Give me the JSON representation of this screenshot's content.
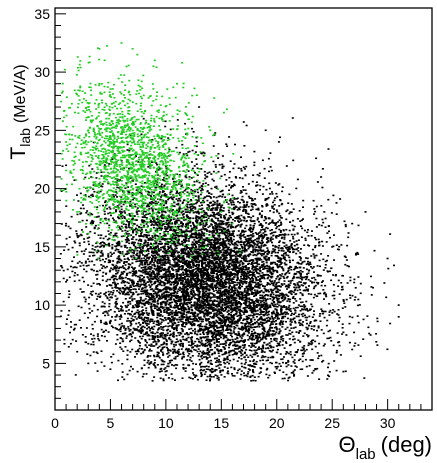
{
  "chart_data": {
    "type": "scatter",
    "xlabel": "Θ",
    "xlabel_sub": "lab",
    "xlabel_unit": "(deg)",
    "ylabel": "T",
    "ylabel_sub": "lab",
    "ylabel_unit": "(MeV/A)",
    "xlim": [
      0,
      34
    ],
    "ylim": [
      1,
      35.5
    ],
    "x_ticks": [
      0,
      5,
      10,
      15,
      20,
      25,
      30
    ],
    "y_ticks": [
      5,
      10,
      15,
      20,
      25,
      30,
      35
    ],
    "grid": false,
    "series": [
      {
        "color": "#000000",
        "count": 9000,
        "distribution": {
          "x_mean": 13.5,
          "x_sd": 5.3,
          "y_mean": 12.2,
          "y_sd": 4.2,
          "x_range": [
            0.5,
            32
          ],
          "y_range": [
            3.5,
            27
          ]
        },
        "points": [
          [
            2,
            6
          ],
          [
            3,
            5
          ],
          [
            5,
            4.5
          ],
          [
            10,
            4
          ],
          [
            14,
            4
          ],
          [
            18,
            5
          ],
          [
            27,
            6.5
          ],
          [
            31,
            9
          ],
          [
            31,
            10
          ],
          [
            30,
            14
          ],
          [
            28,
            18
          ],
          [
            24,
            21
          ],
          [
            19,
            25
          ],
          [
            13,
            27
          ],
          [
            8,
            26
          ],
          [
            5,
            24
          ],
          [
            1,
            22
          ],
          [
            1,
            17
          ],
          [
            1,
            12
          ],
          [
            22,
            10
          ],
          [
            20,
            8
          ],
          [
            15,
            12
          ],
          [
            12,
            13
          ],
          [
            25,
            15
          ],
          [
            9,
            10
          ]
        ]
      },
      {
        "color": "#22cc22",
        "count": 1900,
        "distribution": {
          "x_mean": 7.0,
          "x_sd": 3.2,
          "y_mean": 22.0,
          "y_sd": 3.4,
          "x_range": [
            0.5,
            17
          ],
          "y_range": [
            14,
            32.5
          ]
        },
        "points": [
          [
            4,
            32
          ],
          [
            6,
            32.5
          ],
          [
            7,
            32
          ],
          [
            9,
            31
          ],
          [
            4,
            29
          ],
          [
            11,
            29
          ],
          [
            14,
            25
          ],
          [
            3,
            27
          ],
          [
            1,
            24
          ],
          [
            1,
            20
          ],
          [
            2,
            18
          ],
          [
            5,
            16
          ],
          [
            8,
            17
          ],
          [
            11,
            18
          ],
          [
            13,
            20
          ],
          [
            15,
            18
          ],
          [
            16,
            17
          ],
          [
            12,
            22
          ],
          [
            6,
            24
          ],
          [
            8,
            28
          ]
        ]
      }
    ]
  }
}
